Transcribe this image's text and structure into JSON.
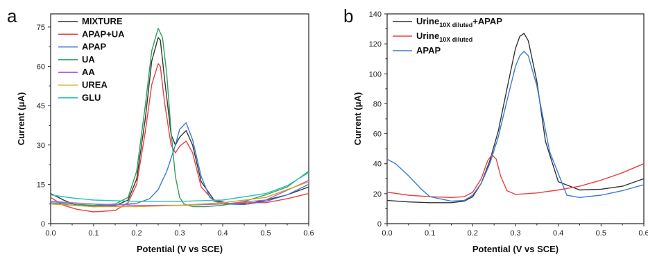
{
  "chart_data": [
    {
      "panel_label": "a",
      "type": "line",
      "xlabel": "Potential (V vs SCE)",
      "ylabel": "Current (μA)",
      "xlim": [
        0.0,
        0.6
      ],
      "ylim": [
        0,
        80
      ],
      "xticks": [
        0.0,
        0.1,
        0.2,
        0.3,
        0.4,
        0.5,
        0.6
      ],
      "yticks": [
        0,
        15,
        30,
        45,
        60,
        75
      ],
      "grid": false,
      "legend_position": "top-left",
      "series": [
        {
          "name": "MIXTURE",
          "color": "#333333",
          "x": [
            0.0,
            0.03,
            0.06,
            0.1,
            0.15,
            0.18,
            0.2,
            0.22,
            0.235,
            0.25,
            0.255,
            0.265,
            0.28,
            0.29,
            0.3,
            0.315,
            0.33,
            0.35,
            0.38,
            0.42,
            0.46,
            0.5,
            0.55,
            0.6
          ],
          "y": [
            11.5,
            9,
            7,
            6.5,
            6.8,
            9,
            17,
            40,
            62,
            71,
            70,
            55,
            34,
            30,
            33,
            35.5,
            30,
            16,
            9,
            7.5,
            7.5,
            9,
            11,
            14
          ]
        },
        {
          "name": "APAP+UA",
          "color": "#e8413c",
          "x": [
            0.0,
            0.03,
            0.06,
            0.1,
            0.15,
            0.18,
            0.2,
            0.22,
            0.235,
            0.25,
            0.255,
            0.265,
            0.28,
            0.29,
            0.3,
            0.315,
            0.33,
            0.35,
            0.38,
            0.42,
            0.46,
            0.5,
            0.55,
            0.6
          ],
          "y": [
            10,
            7,
            5.5,
            4.5,
            5,
            8,
            15,
            35,
            53,
            61,
            60,
            46,
            30,
            27,
            29.5,
            31.5,
            27,
            14,
            8.5,
            7.5,
            8,
            8,
            9.5,
            11.5
          ]
        },
        {
          "name": "APAP",
          "color": "#3a7bd5",
          "x": [
            0.0,
            0.05,
            0.1,
            0.15,
            0.2,
            0.23,
            0.25,
            0.27,
            0.29,
            0.3,
            0.315,
            0.33,
            0.35,
            0.37,
            0.4,
            0.45,
            0.5,
            0.55,
            0.6
          ],
          "y": [
            8,
            7,
            6.8,
            7,
            7.8,
            9.5,
            13,
            20,
            30,
            36,
            38.5,
            32,
            18,
            10,
            7.5,
            7.3,
            8.5,
            11,
            15
          ]
        },
        {
          "name": "UA",
          "color": "#2e9e5b",
          "x": [
            0.0,
            0.05,
            0.1,
            0.15,
            0.18,
            0.2,
            0.22,
            0.235,
            0.25,
            0.26,
            0.27,
            0.28,
            0.29,
            0.3,
            0.31,
            0.33,
            0.36,
            0.4,
            0.45,
            0.5,
            0.55,
            0.6
          ],
          "y": [
            8.5,
            7.5,
            7,
            7.5,
            10,
            20,
            45,
            66,
            74.5,
            71,
            57,
            35,
            18,
            10,
            7.5,
            6.5,
            6.5,
            7,
            8.5,
            11,
            14,
            20
          ]
        },
        {
          "name": "AA",
          "color": "#b45fd6",
          "x": [
            0.0,
            0.1,
            0.2,
            0.3,
            0.4,
            0.5,
            0.6
          ],
          "y": [
            8.5,
            7.5,
            7,
            7,
            7.5,
            9,
            16.5
          ]
        },
        {
          "name": "UREA",
          "color": "#d9a31c",
          "x": [
            0.0,
            0.1,
            0.2,
            0.3,
            0.4,
            0.5,
            0.6
          ],
          "y": [
            7.5,
            6.5,
            6.5,
            7,
            8,
            10,
            16
          ]
        },
        {
          "name": "GLU",
          "color": "#26c6b8",
          "x": [
            0.0,
            0.05,
            0.1,
            0.2,
            0.3,
            0.4,
            0.5,
            0.55,
            0.6
          ],
          "y": [
            11,
            9.8,
            9,
            8.5,
            8.5,
            9,
            11.5,
            14.5,
            19.5
          ]
        }
      ]
    },
    {
      "panel_label": "b",
      "type": "line",
      "xlabel": "Potential (V vs SCE)",
      "ylabel": "Current (μA)",
      "xlim": [
        0.0,
        0.6
      ],
      "ylim": [
        0,
        140
      ],
      "xticks": [
        0.0,
        0.1,
        0.2,
        0.3,
        0.4,
        0.5,
        0.6
      ],
      "yticks": [
        0,
        20,
        40,
        60,
        80,
        100,
        120,
        140
      ],
      "grid": false,
      "legend_position": "top-left",
      "series": [
        {
          "name_main": "Urine",
          "name_sub": "10X diluted",
          "name_suffix": "+APAP",
          "color": "#333333",
          "x": [
            0.0,
            0.05,
            0.1,
            0.15,
            0.18,
            0.2,
            0.22,
            0.24,
            0.26,
            0.28,
            0.3,
            0.31,
            0.32,
            0.33,
            0.35,
            0.37,
            0.4,
            0.45,
            0.5,
            0.55,
            0.6
          ],
          "y": [
            15.5,
            14.5,
            14,
            14,
            15,
            18,
            27,
            42,
            62,
            90,
            117,
            125,
            127,
            122,
            95,
            55,
            28,
            22.5,
            23,
            25,
            30
          ]
        },
        {
          "name_main": "Urine",
          "name_sub": "10X diluted",
          "name_suffix": "",
          "color": "#e8413c",
          "x": [
            0.0,
            0.05,
            0.1,
            0.15,
            0.18,
            0.2,
            0.22,
            0.235,
            0.245,
            0.255,
            0.265,
            0.28,
            0.3,
            0.35,
            0.4,
            0.45,
            0.5,
            0.55,
            0.6
          ],
          "y": [
            21,
            19,
            18,
            17.5,
            18,
            21,
            30,
            42,
            46,
            43,
            32,
            22,
            19.5,
            20.5,
            22.5,
            25,
            29,
            34,
            40
          ]
        },
        {
          "name_main": "APAP",
          "name_sub": "",
          "name_suffix": "",
          "color": "#3a7bd5",
          "x": [
            0.0,
            0.02,
            0.05,
            0.08,
            0.1,
            0.15,
            0.18,
            0.2,
            0.22,
            0.24,
            0.26,
            0.28,
            0.3,
            0.31,
            0.32,
            0.33,
            0.35,
            0.38,
            0.42,
            0.45,
            0.5,
            0.55,
            0.6
          ],
          "y": [
            43,
            40,
            32,
            23,
            18,
            15,
            15.5,
            19,
            27,
            40,
            58,
            82,
            105,
            112,
            115,
            112,
            92,
            48,
            19,
            17.5,
            19,
            22,
            26
          ]
        }
      ]
    }
  ]
}
